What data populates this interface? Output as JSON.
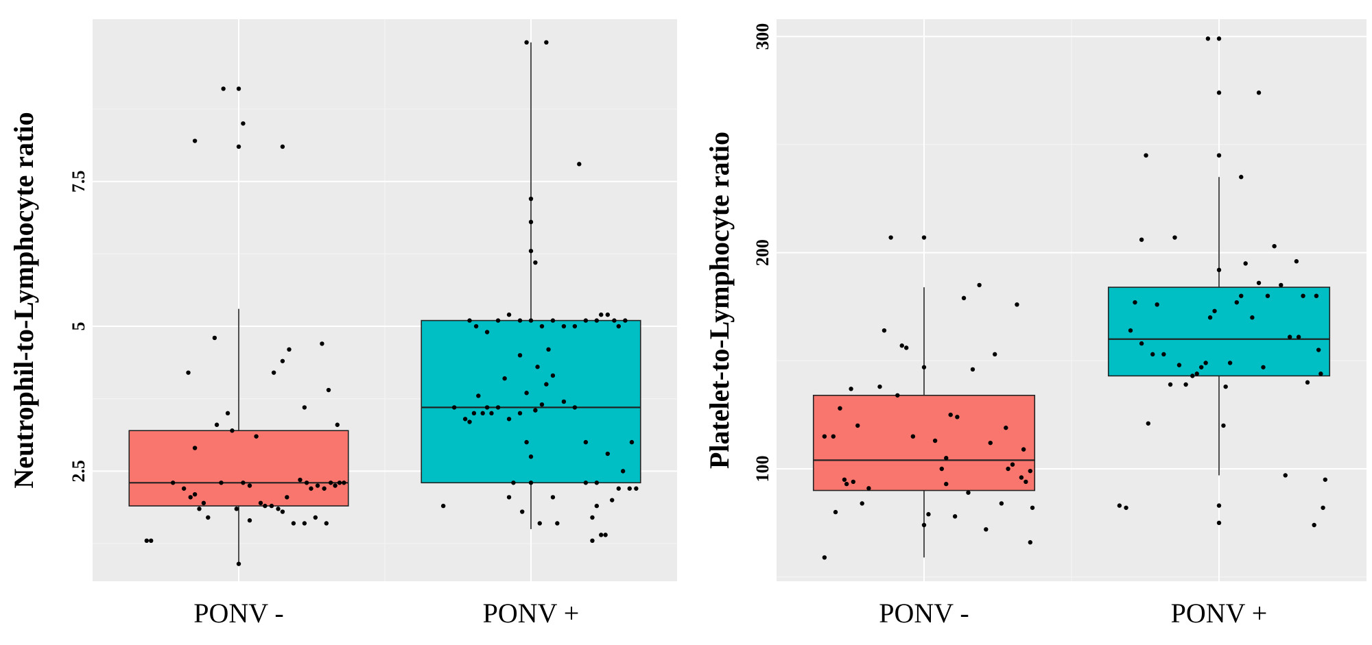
{
  "chart_data": [
    {
      "type": "box",
      "ylabel": "Neutrophil-to-Lymphocyte ratio",
      "xlabel": "",
      "categories": [
        "PONV -",
        "PONV +"
      ],
      "yticks": [
        2.5,
        5,
        7.5
      ],
      "ylim": [
        0.6,
        10.3
      ],
      "grid": true,
      "colors": [
        "#f8766d",
        "#00bfc4"
      ],
      "boxes": [
        {
          "name": "PONV -",
          "whisker_low": 0.9,
          "q1": 1.9,
          "median": 2.3,
          "q3": 3.2,
          "whisker_high": 5.3
        },
        {
          "name": "PONV +",
          "whisker_low": 1.5,
          "q1": 2.3,
          "median": 3.6,
          "q3": 5.1,
          "whisker_high": 9.9
        }
      ],
      "points": [
        [
          {
            "dx": -0.42,
            "y": 1.3
          },
          {
            "dx": -0.4,
            "y": 1.3
          },
          {
            "dx": -0.3,
            "y": 2.3
          },
          {
            "dx": -0.25,
            "y": 2.2
          },
          {
            "dx": -0.2,
            "y": 2.1
          },
          {
            "dx": -0.22,
            "y": 2.05
          },
          {
            "dx": -0.18,
            "y": 1.85
          },
          {
            "dx": -0.16,
            "y": 1.95
          },
          {
            "dx": -0.14,
            "y": 1.7
          },
          {
            "dx": -0.2,
            "y": 2.9
          },
          {
            "dx": -0.08,
            "y": 2.3
          },
          {
            "dx": -0.1,
            "y": 3.3
          },
          {
            "dx": -0.05,
            "y": 3.5
          },
          {
            "dx": -0.03,
            "y": 3.2
          },
          {
            "dx": -0.01,
            "y": 1.85
          },
          {
            "dx": 0.02,
            "y": 2.3
          },
          {
            "dx": 0.05,
            "y": 2.25
          },
          {
            "dx": 0.08,
            "y": 3.1
          },
          {
            "dx": 0.1,
            "y": 1.95
          },
          {
            "dx": 0.12,
            "y": 1.9
          },
          {
            "dx": 0.15,
            "y": 1.9
          },
          {
            "dx": 0.18,
            "y": 1.85
          },
          {
            "dx": 0.2,
            "y": 1.8
          },
          {
            "dx": 0.22,
            "y": 2.05
          },
          {
            "dx": 0.25,
            "y": 1.6
          },
          {
            "dx": 0.3,
            "y": 1.6
          },
          {
            "dx": 0.35,
            "y": 1.7
          },
          {
            "dx": 0.4,
            "y": 1.6
          },
          {
            "dx": 0.05,
            "y": 1.65
          },
          {
            "dx": 0.28,
            "y": 2.35
          },
          {
            "dx": 0.31,
            "y": 2.3
          },
          {
            "dx": 0.33,
            "y": 2.2
          },
          {
            "dx": 0.36,
            "y": 2.25
          },
          {
            "dx": 0.39,
            "y": 2.2
          },
          {
            "dx": 0.42,
            "y": 2.3
          },
          {
            "dx": 0.44,
            "y": 2.25
          },
          {
            "dx": 0.46,
            "y": 2.3
          },
          {
            "dx": 0.48,
            "y": 2.3
          },
          {
            "dx": 0.3,
            "y": 3.6
          },
          {
            "dx": 0.41,
            "y": 3.9
          },
          {
            "dx": 0.45,
            "y": 3.3
          },
          {
            "dx": -0.11,
            "y": 4.8
          },
          {
            "dx": -0.23,
            "y": 4.2
          },
          {
            "dx": 0.2,
            "y": 4.4
          },
          {
            "dx": 0.16,
            "y": 4.2
          },
          {
            "dx": 0.23,
            "y": 4.6
          },
          {
            "dx": 0.38,
            "y": 4.7
          },
          {
            "dx": 0.02,
            "y": 8.5
          },
          {
            "dx": -0.2,
            "y": 8.2
          },
          {
            "dx": 0.0,
            "y": 8.1
          },
          {
            "dx": -0.07,
            "y": 9.1
          },
          {
            "dx": 0.0,
            "y": 9.1
          },
          {
            "dx": 0.2,
            "y": 8.1
          },
          {
            "dx": 0.0,
            "y": 0.9
          }
        ],
        [
          {
            "dx": -0.4,
            "y": 1.9
          },
          {
            "dx": -0.35,
            "y": 3.6
          },
          {
            "dx": -0.3,
            "y": 3.4
          },
          {
            "dx": -0.28,
            "y": 3.35
          },
          {
            "dx": -0.26,
            "y": 3.5
          },
          {
            "dx": -0.24,
            "y": 3.8
          },
          {
            "dx": -0.22,
            "y": 3.5
          },
          {
            "dx": -0.2,
            "y": 3.6
          },
          {
            "dx": -0.18,
            "y": 3.5
          },
          {
            "dx": -0.15,
            "y": 3.6
          },
          {
            "dx": -0.12,
            "y": 4.1
          },
          {
            "dx": -0.1,
            "y": 3.4
          },
          {
            "dx": -0.05,
            "y": 3.5
          },
          {
            "dx": -0.02,
            "y": 3.0
          },
          {
            "dx": 0.0,
            "y": 2.75
          },
          {
            "dx": 0.02,
            "y": 3.55
          },
          {
            "dx": 0.05,
            "y": 3.65
          },
          {
            "dx": 0.07,
            "y": 4.0
          },
          {
            "dx": 0.1,
            "y": 4.15
          },
          {
            "dx": 0.15,
            "y": 3.7
          },
          {
            "dx": 0.2,
            "y": 3.6
          },
          {
            "dx": 0.25,
            "y": 3.0
          },
          {
            "dx": 0.3,
            "y": 2.3
          },
          {
            "dx": 0.35,
            "y": 2.8
          },
          {
            "dx": -0.05,
            "y": 4.5
          },
          {
            "dx": -0.02,
            "y": 3.85
          },
          {
            "dx": 0.03,
            "y": 4.3
          },
          {
            "dx": 0.08,
            "y": 4.6
          },
          {
            "dx": -0.08,
            "y": 2.3
          },
          {
            "dx": -0.04,
            "y": 1.8
          },
          {
            "dx": 0.0,
            "y": 2.3
          },
          {
            "dx": 0.04,
            "y": 1.6
          },
          {
            "dx": 0.12,
            "y": 1.6
          },
          {
            "dx": 0.25,
            "y": 2.3
          },
          {
            "dx": 0.28,
            "y": 1.7
          },
          {
            "dx": 0.3,
            "y": 1.9
          },
          {
            "dx": 0.32,
            "y": 1.4
          },
          {
            "dx": 0.34,
            "y": 1.4
          },
          {
            "dx": 0.37,
            "y": 2.0
          },
          {
            "dx": 0.4,
            "y": 2.2
          },
          {
            "dx": 0.42,
            "y": 2.5
          },
          {
            "dx": 0.45,
            "y": 2.2
          },
          {
            "dx": 0.48,
            "y": 2.2
          },
          {
            "dx": 0.46,
            "y": 3.0
          },
          {
            "dx": -0.28,
            "y": 5.1
          },
          {
            "dx": -0.25,
            "y": 5.0
          },
          {
            "dx": -0.2,
            "y": 4.9
          },
          {
            "dx": -0.15,
            "y": 5.1
          },
          {
            "dx": -0.1,
            "y": 5.2
          },
          {
            "dx": -0.05,
            "y": 5.1
          },
          {
            "dx": 0.0,
            "y": 5.1
          },
          {
            "dx": 0.05,
            "y": 5.0
          },
          {
            "dx": 0.1,
            "y": 5.1
          },
          {
            "dx": 0.15,
            "y": 5.0
          },
          {
            "dx": 0.2,
            "y": 5.0
          },
          {
            "dx": 0.25,
            "y": 5.1
          },
          {
            "dx": 0.3,
            "y": 5.1
          },
          {
            "dx": 0.32,
            "y": 5.2
          },
          {
            "dx": 0.35,
            "y": 5.2
          },
          {
            "dx": 0.38,
            "y": 5.1
          },
          {
            "dx": 0.4,
            "y": 5.0
          },
          {
            "dx": 0.43,
            "y": 5.1
          },
          {
            "dx": 0.0,
            "y": 6.3
          },
          {
            "dx": 0.0,
            "y": 7.2
          },
          {
            "dx": 0.0,
            "y": 6.8
          },
          {
            "dx": 0.22,
            "y": 7.8
          },
          {
            "dx": -0.02,
            "y": 9.9
          },
          {
            "dx": 0.07,
            "y": 9.9
          },
          {
            "dx": 0.28,
            "y": 1.3
          },
          {
            "dx": -0.1,
            "y": 2.05
          },
          {
            "dx": 0.1,
            "y": 2.05
          },
          {
            "dx": 0.02,
            "y": 6.1
          }
        ]
      ]
    },
    {
      "type": "box",
      "ylabel": "Platelet-to-Lymphocyte ratio",
      "xlabel": "",
      "categories": [
        "PONV -",
        "PONV +"
      ],
      "yticks": [
        100,
        200,
        300
      ],
      "ylim": [
        48,
        308
      ],
      "grid": true,
      "colors": [
        "#f8766d",
        "#00bfc4"
      ],
      "boxes": [
        {
          "name": "PONV -",
          "whisker_low": 59,
          "q1": 90,
          "median": 104,
          "q3": 134,
          "whisker_high": 184
        },
        {
          "name": "PONV +",
          "whisker_low": 97,
          "q1": 143,
          "median": 160,
          "q3": 184,
          "whisker_high": 235
        }
      ],
      "points": [
        [
          {
            "dx": -0.45,
            "y": 59
          },
          {
            "dx": -0.45,
            "y": 115
          },
          {
            "dx": -0.41,
            "y": 115
          },
          {
            "dx": -0.4,
            "y": 80
          },
          {
            "dx": -0.38,
            "y": 128
          },
          {
            "dx": -0.36,
            "y": 95
          },
          {
            "dx": -0.35,
            "y": 93
          },
          {
            "dx": -0.33,
            "y": 137
          },
          {
            "dx": -0.32,
            "y": 94
          },
          {
            "dx": -0.3,
            "y": 120
          },
          {
            "dx": -0.28,
            "y": 84
          },
          {
            "dx": -0.25,
            "y": 91
          },
          {
            "dx": -0.2,
            "y": 138
          },
          {
            "dx": -0.18,
            "y": 164
          },
          {
            "dx": -0.15,
            "y": 207
          },
          {
            "dx": -0.1,
            "y": 157
          },
          {
            "dx": -0.08,
            "y": 156
          },
          {
            "dx": -0.05,
            "y": 115
          },
          {
            "dx": 0.0,
            "y": 147
          },
          {
            "dx": 0.0,
            "y": 207
          },
          {
            "dx": 0.0,
            "y": 74
          },
          {
            "dx": 0.02,
            "y": 79
          },
          {
            "dx": 0.05,
            "y": 113
          },
          {
            "dx": 0.08,
            "y": 100
          },
          {
            "dx": 0.1,
            "y": 93
          },
          {
            "dx": 0.12,
            "y": 125
          },
          {
            "dx": 0.14,
            "y": 78
          },
          {
            "dx": 0.15,
            "y": 124
          },
          {
            "dx": 0.18,
            "y": 179
          },
          {
            "dx": 0.2,
            "y": 89
          },
          {
            "dx": 0.22,
            "y": 146
          },
          {
            "dx": 0.25,
            "y": 185
          },
          {
            "dx": 0.28,
            "y": 72
          },
          {
            "dx": 0.3,
            "y": 112
          },
          {
            "dx": 0.32,
            "y": 153
          },
          {
            "dx": 0.35,
            "y": 84
          },
          {
            "dx": 0.37,
            "y": 119
          },
          {
            "dx": 0.38,
            "y": 100
          },
          {
            "dx": 0.4,
            "y": 102
          },
          {
            "dx": 0.42,
            "y": 176
          },
          {
            "dx": 0.44,
            "y": 96
          },
          {
            "dx": 0.45,
            "y": 109
          },
          {
            "dx": 0.46,
            "y": 94
          },
          {
            "dx": 0.48,
            "y": 99
          },
          {
            "dx": 0.48,
            "y": 66
          },
          {
            "dx": 0.49,
            "y": 82
          },
          {
            "dx": 0.1,
            "y": 105
          },
          {
            "dx": -0.12,
            "y": 134
          }
        ],
        [
          {
            "dx": -0.45,
            "y": 83
          },
          {
            "dx": -0.42,
            "y": 82
          },
          {
            "dx": -0.4,
            "y": 164
          },
          {
            "dx": -0.38,
            "y": 177
          },
          {
            "dx": -0.35,
            "y": 206
          },
          {
            "dx": -0.35,
            "y": 158
          },
          {
            "dx": -0.33,
            "y": 245
          },
          {
            "dx": -0.32,
            "y": 121
          },
          {
            "dx": -0.3,
            "y": 153
          },
          {
            "dx": -0.28,
            "y": 176
          },
          {
            "dx": -0.25,
            "y": 153
          },
          {
            "dx": -0.22,
            "y": 139
          },
          {
            "dx": -0.2,
            "y": 207
          },
          {
            "dx": -0.18,
            "y": 148
          },
          {
            "dx": -0.15,
            "y": 139
          },
          {
            "dx": -0.12,
            "y": 143
          },
          {
            "dx": -0.1,
            "y": 144
          },
          {
            "dx": -0.08,
            "y": 147
          },
          {
            "dx": -0.06,
            "y": 149
          },
          {
            "dx": -0.04,
            "y": 170
          },
          {
            "dx": -0.02,
            "y": 173
          },
          {
            "dx": 0.0,
            "y": 192
          },
          {
            "dx": 0.0,
            "y": 245
          },
          {
            "dx": 0.0,
            "y": 274
          },
          {
            "dx": 0.0,
            "y": 299
          },
          {
            "dx": -0.05,
            "y": 299
          },
          {
            "dx": 0.0,
            "y": 83
          },
          {
            "dx": 0.0,
            "y": 75
          },
          {
            "dx": 0.02,
            "y": 120
          },
          {
            "dx": 0.03,
            "y": 138
          },
          {
            "dx": 0.05,
            "y": 149
          },
          {
            "dx": 0.08,
            "y": 177
          },
          {
            "dx": 0.1,
            "y": 180
          },
          {
            "dx": 0.12,
            "y": 195
          },
          {
            "dx": 0.15,
            "y": 170
          },
          {
            "dx": 0.18,
            "y": 186
          },
          {
            "dx": 0.2,
            "y": 147
          },
          {
            "dx": 0.22,
            "y": 180
          },
          {
            "dx": 0.25,
            "y": 203
          },
          {
            "dx": 0.28,
            "y": 185
          },
          {
            "dx": 0.3,
            "y": 97
          },
          {
            "dx": 0.32,
            "y": 161
          },
          {
            "dx": 0.35,
            "y": 196
          },
          {
            "dx": 0.38,
            "y": 180
          },
          {
            "dx": 0.4,
            "y": 140
          },
          {
            "dx": 0.43,
            "y": 74
          },
          {
            "dx": 0.45,
            "y": 155
          },
          {
            "dx": 0.47,
            "y": 82
          },
          {
            "dx": 0.48,
            "y": 95
          },
          {
            "dx": 0.1,
            "y": 235
          },
          {
            "dx": 0.18,
            "y": 274
          },
          {
            "dx": 0.36,
            "y": 161
          },
          {
            "dx": 0.44,
            "y": 180
          },
          {
            "dx": 0.46,
            "y": 144
          }
        ]
      ]
    }
  ]
}
